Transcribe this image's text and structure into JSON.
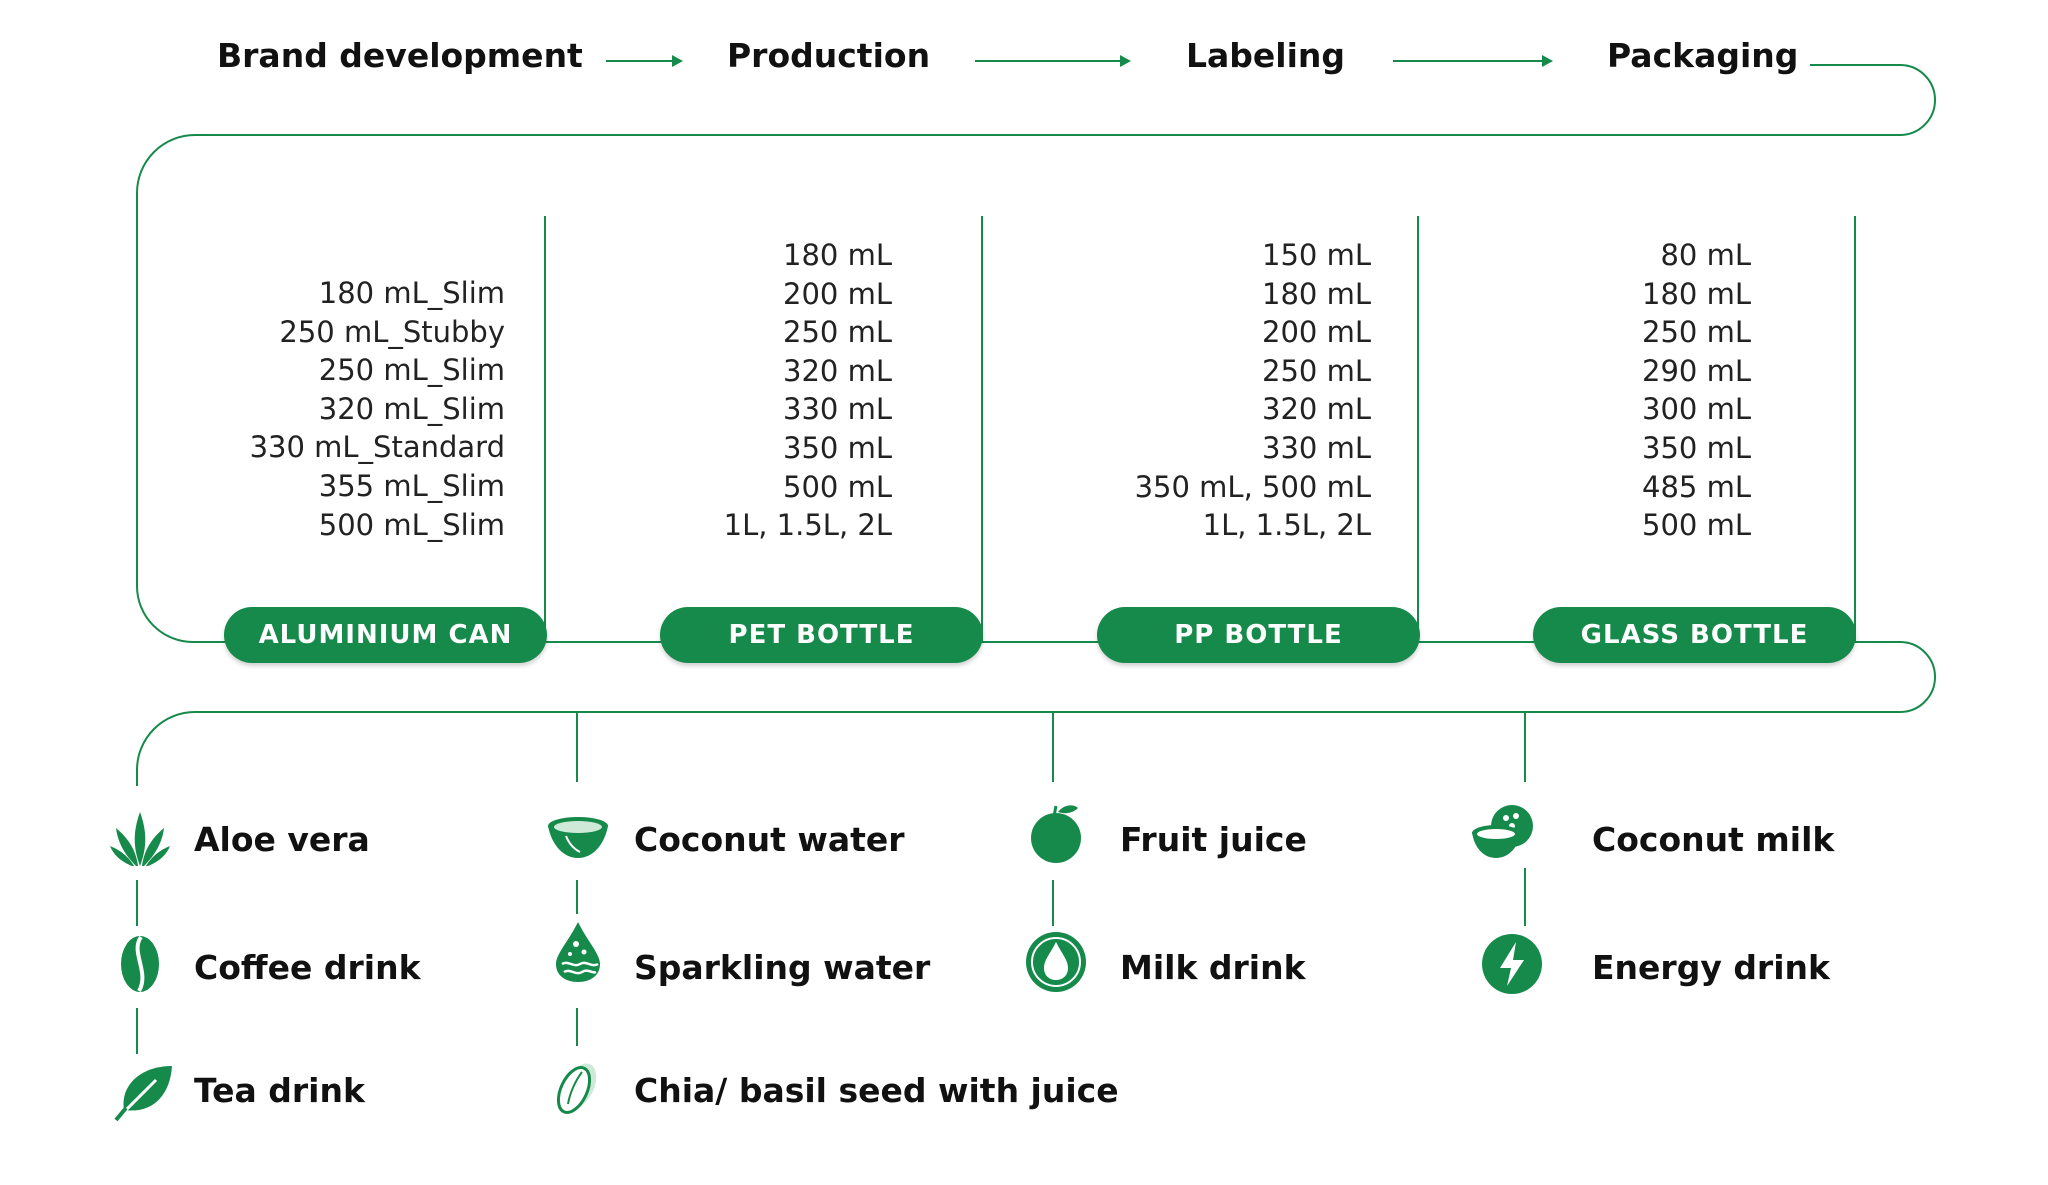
{
  "colors": {
    "accent": "#168a4b",
    "light_green": "#cfe9d8",
    "text": "#111111"
  },
  "process_steps": [
    {
      "label": "Brand development"
    },
    {
      "label": "Production"
    },
    {
      "label": "Labeling"
    },
    {
      "label": "Packaging"
    }
  ],
  "packaging": [
    {
      "label": "ALUMINIUM CAN",
      "sizes": [
        "180 mL_Slim",
        "250 mL_Stubby",
        "250 mL_Slim",
        "320 mL_Slim",
        "330 mL_Standard",
        "355 mL_Slim",
        "500 mL_Slim"
      ]
    },
    {
      "label": "PET BOTTLE",
      "sizes": [
        "180 mL",
        "200 mL",
        "250 mL",
        "320 mL",
        "330 mL",
        "350 mL",
        "500 mL",
        "1L, 1.5L, 2L"
      ]
    },
    {
      "label": "PP BOTTLE",
      "sizes": [
        "150 mL",
        "180 mL",
        "200 mL",
        "250 mL",
        "320 mL",
        "330 mL",
        "350 mL, 500 mL",
        "1L, 1.5L, 2L"
      ]
    },
    {
      "label": "GLASS BOTTLE",
      "sizes": [
        "80 mL",
        "180 mL",
        "250 mL",
        "290 mL",
        "300 mL",
        "350 mL",
        "485 mL",
        "500 mL"
      ]
    }
  ],
  "beverages": [
    [
      {
        "label": "Aloe vera",
        "icon": "aloe-vera-icon"
      },
      {
        "label": "Coffee drink",
        "icon": "coffee-bean-icon"
      },
      {
        "label": "Tea drink",
        "icon": "tea-leaf-icon"
      }
    ],
    [
      {
        "label": "Coconut water",
        "icon": "coconut-half-icon"
      },
      {
        "label": "Sparkling water",
        "icon": "sparkling-drop-icon"
      },
      {
        "label": "Chia/ basil seed with juice",
        "icon": "seed-icon"
      }
    ],
    [
      {
        "label": "Fruit juice",
        "icon": "fruit-icon"
      },
      {
        "label": "Milk drink",
        "icon": "milk-drop-icon"
      }
    ],
    [
      {
        "label": "Coconut milk",
        "icon": "coconut-icon"
      },
      {
        "label": "Energy drink",
        "icon": "lightning-icon"
      }
    ]
  ]
}
